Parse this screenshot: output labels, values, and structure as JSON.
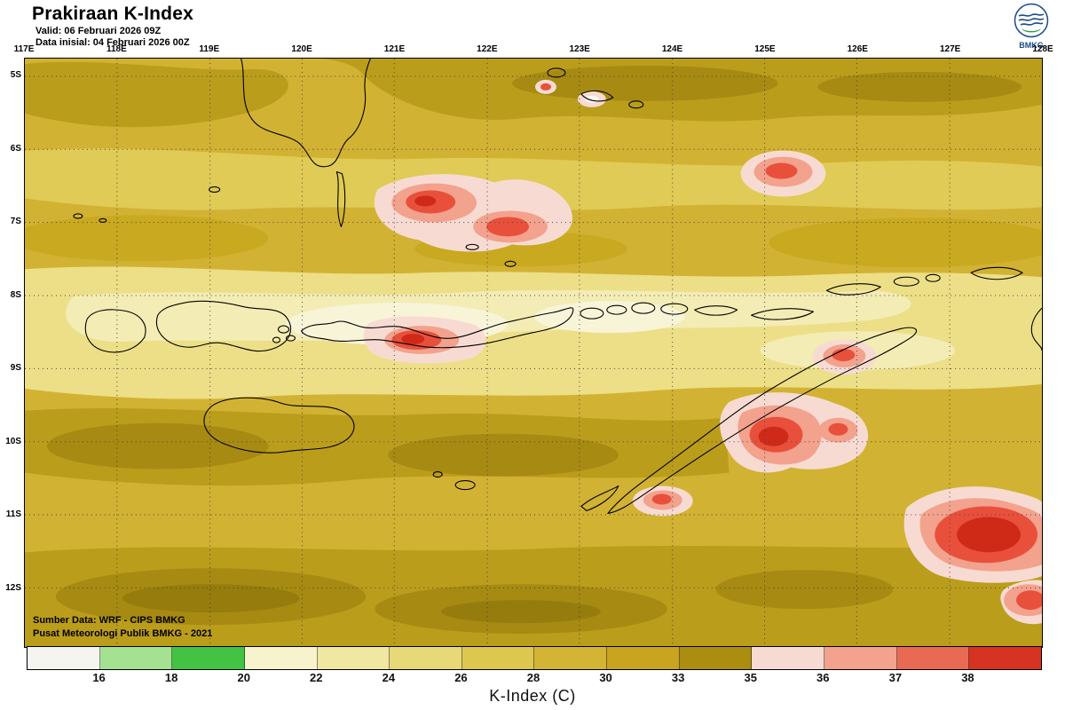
{
  "header": {
    "title": "Prakiraan K-Index",
    "valid": "Valid: 06 Februari 2026 09Z",
    "init": "Data inisial: 04 Februari 2026 00Z",
    "logo_text": "BMKG"
  },
  "map": {
    "lon_labels": [
      "117E",
      "118E",
      "119E",
      "120E",
      "121E",
      "122E",
      "123E",
      "124E",
      "125E",
      "126E",
      "127E",
      "128E"
    ],
    "lat_labels": [
      "5S",
      "6S",
      "7S",
      "8S",
      "9S",
      "10S",
      "11S",
      "12S"
    ],
    "source_line1": "Sumber Data: WRF - CIPS BMKG",
    "source_line2": "Pusat Meteorologi Publik BMKG - 2021"
  },
  "colorbar": {
    "caption": "K-Index (C)",
    "ticks": [
      "16",
      "18",
      "20",
      "22",
      "24",
      "26",
      "28",
      "30",
      "33",
      "35",
      "36",
      "37",
      "38"
    ],
    "colors": [
      "#f4f4f0",
      "#a4e292",
      "#44c243",
      "#f7f3cd",
      "#f0e7a2",
      "#e7d978",
      "#ddc74f",
      "#d3b434",
      "#c8a41f",
      "#ab8d10",
      "#f7dbd2",
      "#f2a28d",
      "#e96a52",
      "#d73322"
    ]
  },
  "chart_data": {
    "type": "heatmap",
    "title": "Prakiraan K-Index",
    "legend_title": "K-Index (C)",
    "legend_boundaries": [
      16,
      18,
      20,
      22,
      24,
      26,
      28,
      30,
      33,
      35,
      36,
      37,
      38
    ],
    "lon_axis": [
      "117E",
      "118E",
      "119E",
      "120E",
      "121E",
      "122E",
      "123E",
      "124E",
      "125E",
      "126E",
      "127E",
      "128E"
    ],
    "lat_axis": [
      "5S",
      "6S",
      "7S",
      "8S",
      "9S",
      "10S",
      "11S",
      "12S"
    ],
    "field_colors": {
      "background_gold": "#d2b232",
      "pale_band": "#f3ecb4",
      "dark_olive": "#a78a11",
      "hotspot_red": "#d73322",
      "hotspot_halo": "#f7dbd2"
    }
  }
}
